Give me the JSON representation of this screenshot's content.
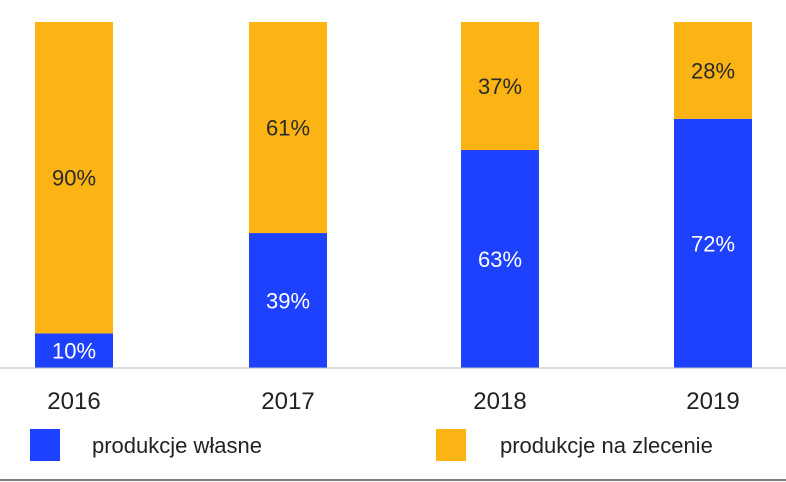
{
  "chart_data": {
    "type": "bar",
    "stacked": true,
    "percent": true,
    "categories": [
      "2016",
      "2017",
      "2018",
      "2019"
    ],
    "series": [
      {
        "name": "produkcje własne",
        "values": [
          10,
          39,
          63,
          72
        ],
        "color": "#1e40ff",
        "label_color": "#ffffff"
      },
      {
        "name": "produkcje na zlecenie",
        "values": [
          90,
          61,
          37,
          28
        ],
        "color": "#fbb413",
        "label_color": "#2a2a2a"
      }
    ],
    "ylim": [
      0,
      100
    ],
    "title": "",
    "xlabel": "",
    "ylabel": "",
    "grid": false,
    "legend_position": "bottom"
  },
  "colors": {
    "axis": "#bfbfbf",
    "bottom_rule": "#555555"
  }
}
